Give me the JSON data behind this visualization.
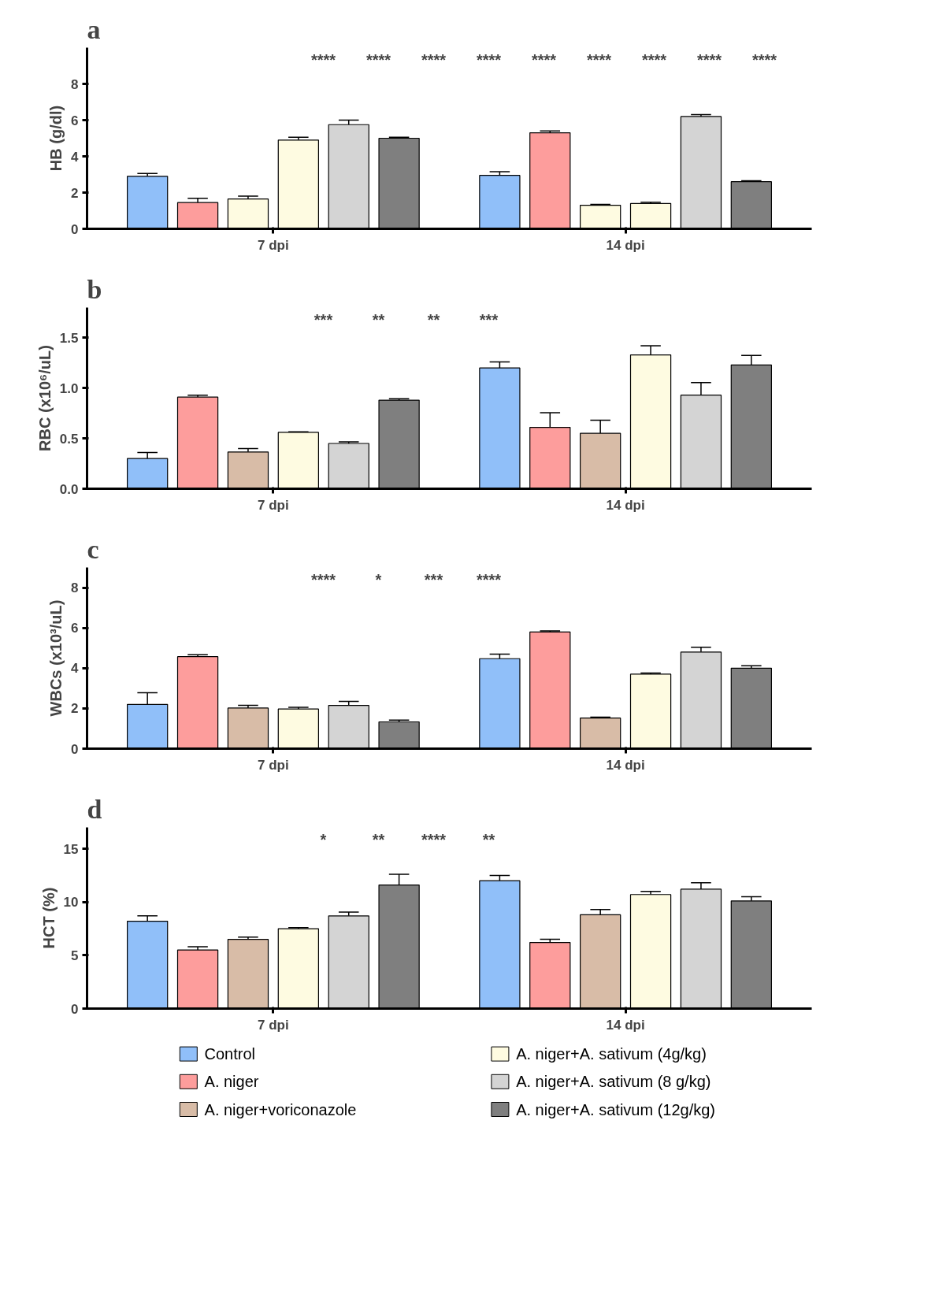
{
  "chart_data": [
    {
      "type": "bar",
      "title": "a",
      "ylabel": "HB (g/dl)",
      "categories": [
        "7 dpi",
        "14 dpi"
      ],
      "ylim": [
        0,
        10
      ],
      "yticks": [
        0,
        2,
        4,
        6,
        8
      ],
      "grid": false,
      "series": [
        {
          "color": "#90bff9",
          "values": [
            2.9,
            2.95
          ],
          "errors": [
            [
              2.9,
              3.05
            ],
            [
              2.95,
              3.15
            ]
          ]
        },
        {
          "color": "#fd9d9c",
          "values": [
            1.45,
            5.3
          ],
          "errors": [
            [
              1.45,
              1.68
            ],
            [
              5.3,
              5.4
            ]
          ]
        },
        {
          "color": "#fefbe1",
          "values": [
            1.65,
            1.3
          ],
          "errors": [
            [
              1.65,
              1.8
            ],
            [
              1.3,
              1.35
            ]
          ]
        },
        {
          "color": "#fefbe1",
          "values": [
            4.9,
            1.4
          ],
          "errors": [
            [
              4.9,
              5.05
            ],
            [
              1.4,
              1.47
            ]
          ]
        },
        {
          "color": "#d4d4d4",
          "values": [
            5.75,
            6.2
          ],
          "errors": [
            [
              5.75,
              6.0
            ],
            [
              6.2,
              6.3
            ]
          ]
        },
        {
          "color": "#7f7f7f",
          "values": [
            5.0,
            2.6
          ],
          "errors": [
            [
              5.0,
              5.05
            ],
            [
              2.6,
              2.65
            ]
          ]
        }
      ],
      "annotations": [
        "****",
        "****",
        "****",
        "****",
        "****",
        "****",
        "****",
        "****",
        "****"
      ]
    },
    {
      "type": "bar",
      "title": "b",
      "ylabel": "RBC (x10⁶/uL)",
      "categories": [
        "7 dpi",
        "14 dpi"
      ],
      "ylim": [
        0,
        1.8
      ],
      "yticks": [
        {
          "value": 0,
          "label": "0.0"
        },
        0.5,
        {
          "value": 1,
          "label": "1.0"
        },
        1.5
      ],
      "grid": false,
      "series": [
        {
          "color": "#90bff9",
          "values": [
            0.3,
            1.2
          ],
          "errors": [
            [
              0.3,
              0.36
            ],
            [
              1.2,
              1.26
            ]
          ]
        },
        {
          "color": "#fd9d9c",
          "values": [
            0.91,
            0.61
          ],
          "errors": [
            [
              0.91,
              0.93
            ],
            [
              0.61,
              0.755
            ]
          ]
        },
        {
          "color": "#d8bca7",
          "values": [
            0.365,
            0.55
          ],
          "errors": [
            [
              0.365,
              0.4
            ],
            [
              0.55,
              0.68
            ]
          ]
        },
        {
          "color": "#fefbe1",
          "values": [
            0.56,
            1.33
          ],
          "errors": [
            [
              0.56,
              0.565
            ],
            [
              1.33,
              1.42
            ]
          ]
        },
        {
          "color": "#d4d4d4",
          "values": [
            0.45,
            0.93
          ],
          "errors": [
            [
              0.45,
              0.465
            ],
            [
              0.93,
              1.055
            ]
          ]
        },
        {
          "color": "#7f7f7f",
          "values": [
            0.88,
            1.23
          ],
          "errors": [
            [
              0.88,
              0.895
            ],
            [
              1.23,
              1.325
            ]
          ]
        }
      ],
      "annotations": [
        "***",
        "**",
        "**",
        "***"
      ]
    },
    {
      "type": "bar",
      "title": "c",
      "ylabel": "WBCs (x10³/uL)",
      "categories": [
        "7 dpi",
        "14 dpi"
      ],
      "ylim": [
        0,
        9
      ],
      "yticks": [
        0,
        2,
        4,
        6,
        8
      ],
      "grid": false,
      "series": [
        {
          "color": "#90bff9",
          "values": [
            2.2,
            4.47
          ],
          "errors": [
            [
              2.2,
              2.78
            ],
            [
              4.47,
              4.7
            ]
          ]
        },
        {
          "color": "#fd9d9c",
          "values": [
            4.57,
            5.8
          ],
          "errors": [
            [
              4.57,
              4.67
            ],
            [
              5.8,
              5.85
            ]
          ]
        },
        {
          "color": "#d8bca7",
          "values": [
            2.02,
            1.52
          ],
          "errors": [
            [
              2.02,
              2.15
            ],
            [
              1.52,
              1.57
            ]
          ]
        },
        {
          "color": "#fefbe1",
          "values": [
            1.97,
            3.7
          ],
          "errors": [
            [
              1.97,
              2.05
            ],
            [
              3.7,
              3.76
            ]
          ]
        },
        {
          "color": "#d4d4d4",
          "values": [
            2.15,
            4.8
          ],
          "errors": [
            [
              2.15,
              2.35
            ],
            [
              4.8,
              5.04
            ]
          ]
        },
        {
          "color": "#7f7f7f",
          "values": [
            1.33,
            4.0
          ],
          "errors": [
            [
              1.33,
              1.42
            ],
            [
              4.0,
              4.12
            ]
          ]
        }
      ],
      "annotations": [
        "****",
        "*",
        "***",
        "****"
      ]
    },
    {
      "type": "bar",
      "title": "d",
      "ylabel": "HCT (%)",
      "categories": [
        "7 dpi",
        "14 dpi"
      ],
      "ylim": [
        0,
        17
      ],
      "yticks": [
        0,
        5,
        10,
        15
      ],
      "grid": false,
      "legend": "bottom",
      "series": [
        {
          "name": "Control",
          "color": "#90bff9",
          "values": [
            8.2,
            12.0
          ],
          "errors": [
            [
              8.2,
              8.7
            ],
            [
              12.0,
              12.5
            ]
          ]
        },
        {
          "name": "A. niger",
          "color": "#fd9d9c",
          "values": [
            5.5,
            6.2
          ],
          "errors": [
            [
              5.5,
              5.8
            ],
            [
              6.2,
              6.5
            ]
          ]
        },
        {
          "name": "A. niger+voriconazole",
          "color": "#d8bca7",
          "values": [
            6.5,
            8.8
          ],
          "errors": [
            [
              6.5,
              6.7
            ],
            [
              8.8,
              9.3
            ]
          ]
        },
        {
          "name": "A. niger+A. sativum (4g/kg)",
          "color": "#fefbe1",
          "values": [
            7.5,
            10.7
          ],
          "errors": [
            [
              7.5,
              7.6
            ],
            [
              10.7,
              11.0
            ]
          ]
        },
        {
          "name": "A. niger+A. sativum (8 g/kg)",
          "color": "#d4d4d4",
          "values": [
            8.7,
            11.2
          ],
          "errors": [
            [
              8.7,
              9.05
            ],
            [
              11.2,
              11.8
            ]
          ]
        },
        {
          "name": "A. niger+A. sativum (12g/kg)",
          "color": "#7f7f7f",
          "values": [
            11.6,
            10.1
          ],
          "errors": [
            [
              11.6,
              12.6
            ],
            [
              10.1,
              10.5
            ]
          ]
        }
      ],
      "annotations": [
        "*",
        "**",
        "****",
        "**"
      ]
    }
  ]
}
